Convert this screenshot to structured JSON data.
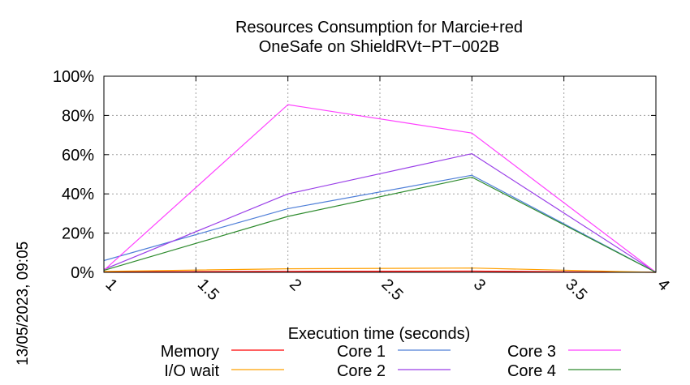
{
  "chart_data": {
    "type": "line",
    "title": [
      "Resources Consumption for Marcie+red",
      "OneSafe on ShieldRVt−PT−002B"
    ],
    "xlabel": "Execution time (seconds)",
    "ylabel": "",
    "timestamp": "13/05/2023, 09:05",
    "xlim": [
      1,
      4
    ],
    "ylim": [
      0,
      100
    ],
    "x_ticks": [
      1,
      1.5,
      2,
      2.5,
      3,
      3.5,
      4
    ],
    "x_tick_labels": [
      "1",
      "1.5",
      "2",
      "2.5",
      "3",
      "3.5",
      "4"
    ],
    "y_ticks": [
      0,
      20,
      40,
      60,
      80,
      100
    ],
    "y_tick_labels": [
      "0%",
      "20%",
      "40%",
      "60%",
      "80%",
      "100%"
    ],
    "grid": true,
    "legend_position": "bottom",
    "x": [
      1,
      2,
      3,
      4
    ],
    "series": [
      {
        "name": "Memory",
        "color": "#ff0000",
        "values": [
          0.2,
          0.5,
          0.6,
          0
        ]
      },
      {
        "name": "I/O wait",
        "color": "#ffa000",
        "values": [
          0.5,
          1.8,
          2.2,
          0
        ]
      },
      {
        "name": "Core 1",
        "color": "#4f7fd8",
        "values": [
          6,
          32.5,
          49.5,
          0
        ]
      },
      {
        "name": "Core 2",
        "color": "#9a3fe8",
        "values": [
          1.5,
          40,
          60.5,
          0
        ]
      },
      {
        "name": "Core 3",
        "color": "#ff40ff",
        "values": [
          1,
          85.5,
          71,
          0
        ]
      },
      {
        "name": "Core 4",
        "color": "#2e8b2e",
        "values": [
          1,
          28.5,
          48.5,
          0
        ]
      }
    ]
  }
}
